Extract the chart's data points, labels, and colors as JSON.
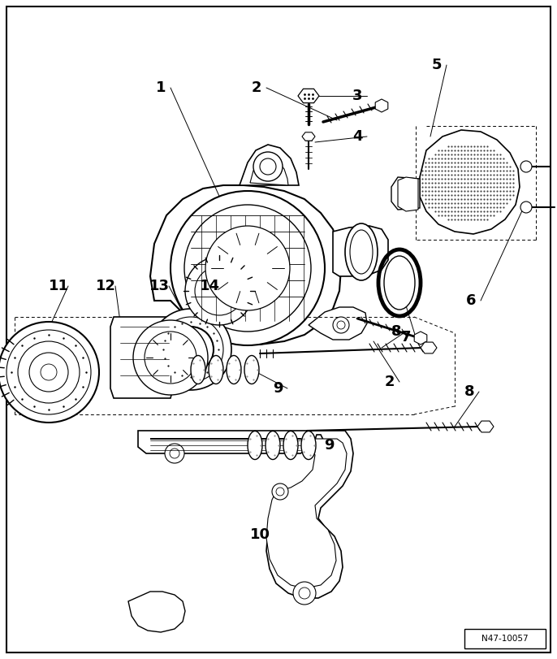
{
  "bg_color": "#ffffff",
  "fig_width": 6.86,
  "fig_height": 8.11,
  "dpi": 100,
  "ref_label": "N47-10057",
  "lc": "#000000",
  "lw": 1.0
}
